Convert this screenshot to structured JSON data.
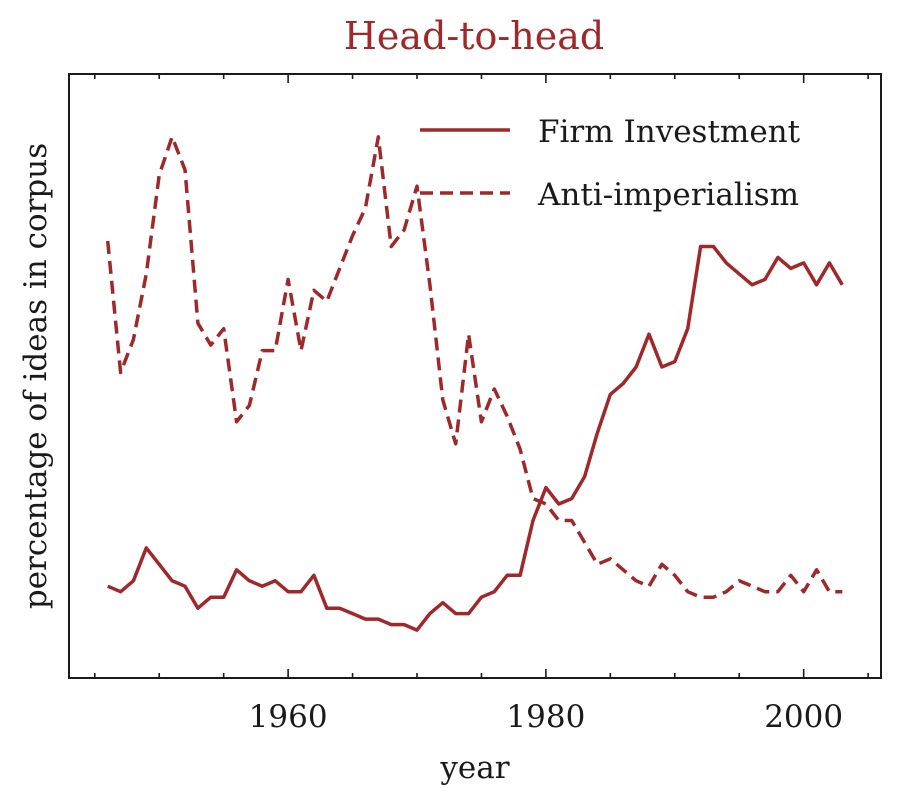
{
  "chart_data": {
    "type": "line",
    "title": "Head-to-head",
    "xlabel": "year",
    "ylabel": "percentage of ideas in corpus",
    "xlim": [
      1943,
      2006
    ],
    "ylim": [
      0,
      1
    ],
    "x_ticks": [
      1960,
      1980,
      2000
    ],
    "y_ticks_shown": false,
    "grid": false,
    "legend_position": "top-right",
    "color": "#a1282a",
    "x": [
      1946,
      1947,
      1948,
      1949,
      1950,
      1951,
      1952,
      1953,
      1954,
      1955,
      1956,
      1957,
      1958,
      1959,
      1960,
      1961,
      1962,
      1963,
      1964,
      1965,
      1966,
      1967,
      1968,
      1969,
      1970,
      1971,
      1972,
      1973,
      1974,
      1975,
      1976,
      1977,
      1978,
      1979,
      1980,
      1981,
      1982,
      1983,
      1984,
      1985,
      1986,
      1987,
      1988,
      1989,
      1990,
      1991,
      1992,
      1993,
      1994,
      1995,
      1996,
      1997,
      1998,
      1999,
      2000,
      2001,
      2002,
      2003
    ],
    "series": [
      {
        "name": "Firm Investment",
        "style": "solid",
        "values": [
          0.12,
          0.11,
          0.13,
          0.19,
          0.16,
          0.13,
          0.12,
          0.08,
          0.1,
          0.1,
          0.15,
          0.13,
          0.12,
          0.13,
          0.11,
          0.11,
          0.14,
          0.08,
          0.08,
          0.07,
          0.06,
          0.06,
          0.05,
          0.05,
          0.04,
          0.07,
          0.09,
          0.07,
          0.07,
          0.1,
          0.11,
          0.14,
          0.14,
          0.24,
          0.3,
          0.27,
          0.28,
          0.32,
          0.4,
          0.47,
          0.49,
          0.52,
          0.58,
          0.52,
          0.53,
          0.59,
          0.74,
          0.74,
          0.71,
          0.69,
          0.67,
          0.68,
          0.72,
          0.7,
          0.71,
          0.67,
          0.71,
          0.67
        ]
      },
      {
        "name": "Anti-imperialism",
        "style": "dashed",
        "values": [
          0.75,
          0.51,
          0.57,
          0.69,
          0.87,
          0.94,
          0.88,
          0.6,
          0.56,
          0.59,
          0.42,
          0.45,
          0.55,
          0.55,
          0.68,
          0.55,
          0.66,
          0.64,
          0.7,
          0.76,
          0.81,
          0.94,
          0.74,
          0.77,
          0.85,
          0.67,
          0.46,
          0.38,
          0.58,
          0.42,
          0.48,
          0.43,
          0.37,
          0.28,
          0.27,
          0.24,
          0.24,
          0.2,
          0.16,
          0.17,
          0.15,
          0.13,
          0.12,
          0.16,
          0.14,
          0.11,
          0.1,
          0.1,
          0.11,
          0.13,
          0.12,
          0.11,
          0.11,
          0.14,
          0.11,
          0.15,
          0.11,
          0.11
        ]
      }
    ]
  }
}
